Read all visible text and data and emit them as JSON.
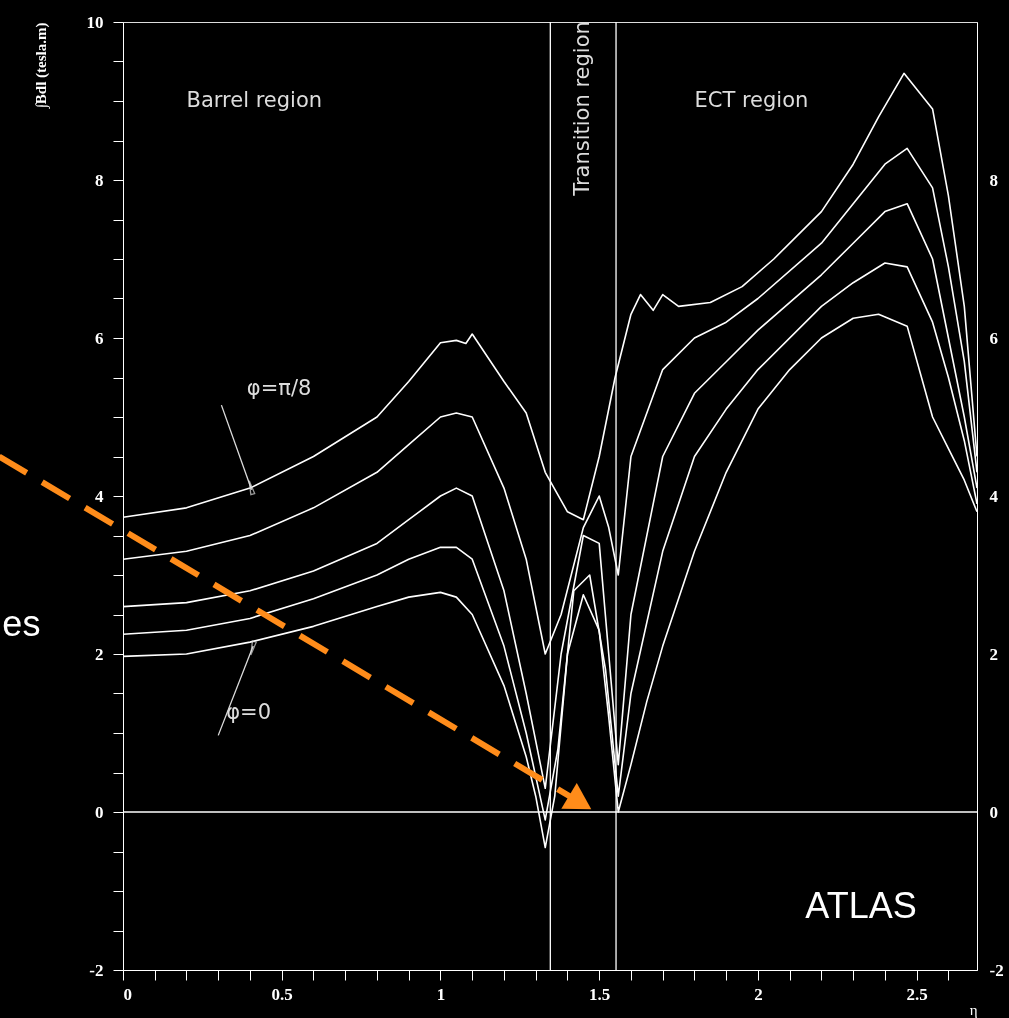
{
  "chart_data": {
    "type": "line",
    "xlabel": "η",
    "ylabel": "∫Bdl (tesla.m)",
    "xlim": [
      0,
      2.69
    ],
    "ylim": [
      -2,
      10
    ],
    "y2lim": [
      -2,
      10
    ],
    "xticks": [
      0,
      {
        "value": 0.1,
        "label": null
      },
      {
        "value": 0.2,
        "label": null
      },
      {
        "value": 0.3,
        "label": null
      },
      {
        "value": 0.4,
        "label": null
      },
      0.5,
      {
        "value": 0.6,
        "label": null
      },
      {
        "value": 0.7,
        "label": null
      },
      {
        "value": 0.8,
        "label": null
      },
      {
        "value": 0.9,
        "label": null
      },
      1,
      {
        "value": 1.1,
        "label": null
      },
      {
        "value": 1.2,
        "label": null
      },
      {
        "value": 1.3,
        "label": null
      },
      {
        "value": 1.4,
        "label": null
      },
      1.5,
      {
        "value": 1.6,
        "label": null
      },
      {
        "value": 1.7,
        "label": null
      },
      {
        "value": 1.8,
        "label": null
      },
      {
        "value": 1.9,
        "label": null
      },
      2,
      {
        "value": 2.1,
        "label": null
      },
      {
        "value": 2.2,
        "label": null
      },
      {
        "value": 2.3,
        "label": null
      },
      {
        "value": 2.4,
        "label": null
      },
      2.5,
      {
        "value": 2.6,
        "label": null
      }
    ],
    "yticks": [
      -2,
      {
        "value": -1.5,
        "label": null
      },
      {
        "value": -1,
        "label": null
      },
      {
        "value": -0.5,
        "label": null
      },
      0,
      {
        "value": 0.5,
        "label": null
      },
      {
        "value": 1,
        "label": null
      },
      {
        "value": 1.5,
        "label": null
      },
      2,
      {
        "value": 2.5,
        "label": null
      },
      {
        "value": 3,
        "label": null
      },
      {
        "value": 3.5,
        "label": null
      },
      4,
      {
        "value": 4.5,
        "label": null
      },
      {
        "value": 5,
        "label": null
      },
      {
        "value": 5.5,
        "label": null
      },
      6,
      {
        "value": 6.5,
        "label": null
      },
      {
        "value": 7,
        "label": null
      },
      {
        "value": 7.5,
        "label": null
      },
      8,
      {
        "value": 8.5,
        "label": null
      },
      {
        "value": 9,
        "label": null
      },
      {
        "value": 9.5,
        "label": null
      },
      10
    ],
    "y2ticks": [
      -2,
      0,
      2,
      4,
      6,
      8
    ],
    "grid": false,
    "line_style": "solid",
    "series": [
      {
        "color": "#ffffff",
        "x": [
          0,
          0.2,
          0.4,
          0.6,
          0.8,
          0.9,
          1.0,
          1.05,
          1.08,
          1.1,
          1.2,
          1.27,
          1.33,
          1.4,
          1.45,
          1.5,
          1.55,
          1.6,
          1.63,
          1.67,
          1.7,
          1.75,
          1.85,
          1.95,
          2.05,
          2.2,
          2.3,
          2.38,
          2.46,
          2.55,
          2.6,
          2.65,
          2.69
        ],
        "values": [
          3.73,
          3.85,
          4.1,
          4.5,
          5.0,
          5.45,
          5.94,
          5.97,
          5.93,
          6.05,
          5.45,
          5.05,
          4.3,
          3.8,
          3.7,
          4.5,
          5.5,
          6.3,
          6.55,
          6.35,
          6.55,
          6.4,
          6.45,
          6.65,
          7.0,
          7.6,
          8.2,
          8.8,
          9.35,
          8.9,
          7.8,
          6.4,
          4.5
        ]
      },
      {
        "color": "#ffffff",
        "x": [
          0,
          0.2,
          0.4,
          0.6,
          0.8,
          0.9,
          1.0,
          1.05,
          1.1,
          1.2,
          1.27,
          1.33,
          1.38,
          1.45,
          1.5,
          1.53,
          1.56,
          1.6,
          1.7,
          1.8,
          1.9,
          2.0,
          2.2,
          2.3,
          2.4,
          2.47,
          2.55,
          2.6,
          2.65,
          2.69
        ],
        "values": [
          3.2,
          3.3,
          3.5,
          3.85,
          4.3,
          4.65,
          5.0,
          5.05,
          5.0,
          4.1,
          3.2,
          2.0,
          2.5,
          3.6,
          4.0,
          3.6,
          3.0,
          4.5,
          5.6,
          6.0,
          6.2,
          6.5,
          7.2,
          7.7,
          8.2,
          8.4,
          7.9,
          6.9,
          5.7,
          4.3
        ]
      },
      {
        "color": "#ffffff",
        "x": [
          0,
          0.2,
          0.4,
          0.6,
          0.8,
          0.9,
          1.0,
          1.05,
          1.1,
          1.2,
          1.27,
          1.33,
          1.38,
          1.45,
          1.5,
          1.53,
          1.56,
          1.6,
          1.7,
          1.8,
          1.9,
          2.0,
          2.2,
          2.3,
          2.4,
          2.47,
          2.55,
          2.6,
          2.65,
          2.69
        ],
        "values": [
          2.6,
          2.65,
          2.8,
          3.05,
          3.4,
          3.7,
          4.0,
          4.1,
          4.0,
          2.8,
          1.5,
          0.3,
          2.0,
          3.5,
          3.4,
          2.0,
          0.6,
          2.5,
          4.5,
          5.3,
          5.7,
          6.1,
          6.8,
          7.2,
          7.6,
          7.7,
          7.0,
          6.0,
          5.0,
          4.1
        ]
      },
      {
        "color": "#ffffff",
        "x": [
          0,
          0.2,
          0.4,
          0.6,
          0.8,
          0.9,
          1.0,
          1.05,
          1.1,
          1.2,
          1.27,
          1.33,
          1.37,
          1.42,
          1.47,
          1.52,
          1.56,
          1.6,
          1.7,
          1.8,
          1.9,
          2.0,
          2.2,
          2.3,
          2.4,
          2.47,
          2.55,
          2.6,
          2.65,
          2.69
        ],
        "values": [
          2.25,
          2.3,
          2.45,
          2.7,
          3.0,
          3.2,
          3.35,
          3.35,
          3.2,
          2.1,
          1.0,
          -0.1,
          0.8,
          2.8,
          3.0,
          1.8,
          0.2,
          1.5,
          3.3,
          4.5,
          5.1,
          5.6,
          6.4,
          6.7,
          6.95,
          6.9,
          6.2,
          5.5,
          4.7,
          3.9
        ]
      },
      {
        "color": "#ffffff",
        "x": [
          0,
          0.2,
          0.4,
          0.6,
          0.8,
          0.9,
          1.0,
          1.05,
          1.1,
          1.2,
          1.27,
          1.3,
          1.33,
          1.36,
          1.4,
          1.45,
          1.5,
          1.53,
          1.56,
          1.6,
          1.65,
          1.7,
          1.8,
          1.9,
          2.0,
          2.1,
          2.2,
          2.3,
          2.38,
          2.47,
          2.55,
          2.6,
          2.65,
          2.69
        ],
        "values": [
          1.97,
          2.0,
          2.15,
          2.35,
          2.6,
          2.72,
          2.78,
          2.72,
          2.5,
          1.6,
          0.7,
          0.2,
          -0.45,
          0.2,
          2.0,
          2.75,
          2.3,
          1.2,
          0.0,
          0.6,
          1.4,
          2.1,
          3.3,
          4.3,
          5.1,
          5.6,
          6.0,
          6.25,
          6.3,
          6.15,
          5.0,
          4.6,
          4.2,
          3.8
        ]
      }
    ],
    "ref_lines": [
      {
        "axis": "x",
        "value": 1.346,
        "color": "#ffffff"
      },
      {
        "axis": "x",
        "value": 1.553,
        "color": "#ffffff"
      },
      {
        "axis": "y",
        "value": 0,
        "color": "#ffffff"
      }
    ],
    "annotations": [
      "Barrel region",
      "Transition region",
      "ECT region",
      {
        "text": "φ=π/8",
        "x": 0.405,
        "y": 4.08
      },
      {
        "text": "φ=0",
        "x": 0.41,
        "y": 2.1
      },
      "ATLAS",
      "es"
    ]
  }
}
